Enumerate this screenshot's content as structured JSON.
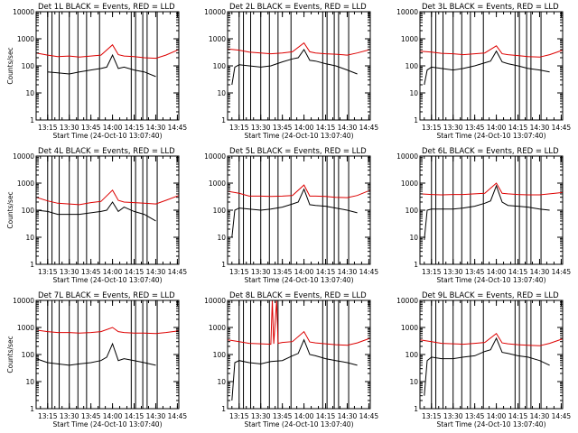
{
  "figure": {
    "background": "#ffffff",
    "events_color": "#000000",
    "lld_color": "#dd0000"
  },
  "chart_data": [
    {
      "type": "line",
      "title": "Det 1L BLACK = Events, RED = LLD",
      "ylabel": "Counts/sec",
      "xlabel": "Start Time (24-Oct-10 13:07:40)",
      "yscale": "log",
      "ylim": [
        1,
        10000
      ],
      "xlim": [
        "13:07",
        "14:46"
      ],
      "x_ticks": [
        "13:15",
        "13:30",
        "13:45",
        "14:00",
        "14:15",
        "14:30",
        "14:45"
      ],
      "y_ticks": [
        "1",
        "10",
        "100",
        "1000",
        "10000"
      ],
      "vlines": [
        "13:15",
        "13:18",
        "13:23",
        "13:30",
        "13:36",
        "13:42",
        "13:51",
        "14:13",
        "14:16",
        "14:21",
        "14:24",
        "14:31"
      ],
      "series": [
        {
          "x": [
            "13:07",
            "13:15",
            "13:22",
            "13:30",
            "13:37",
            "13:45",
            "13:52",
            "14:00",
            "14:04",
            "14:08",
            "14:15",
            "14:22",
            "14:30",
            "14:37",
            "14:46"
          ],
          "y": [
            300,
            250,
            220,
            230,
            210,
            230,
            250,
            600,
            260,
            230,
            220,
            200,
            190,
            250,
            400
          ]
        },
        {
          "x": [
            "13:15",
            "13:22",
            "13:30",
            "13:37",
            "13:45",
            "13:52",
            "13:56",
            "14:00",
            "14:04",
            "14:08",
            "14:15",
            "14:22",
            "14:30"
          ],
          "y": [
            60,
            55,
            50,
            60,
            70,
            80,
            90,
            250,
            80,
            90,
            70,
            60,
            40
          ]
        }
      ]
    },
    {
      "type": "line",
      "title": "Det 2L BLACK = Events, RED = LLD",
      "ylabel": "",
      "xlabel": "Start Time (24-Oct-10 13:07:40)",
      "yscale": "log",
      "ylim": [
        1,
        10000
      ],
      "xlim": [
        "13:07",
        "14:46"
      ],
      "x_ticks": [
        "13:15",
        "13:30",
        "13:45",
        "14:00",
        "14:15",
        "14:30",
        "14:45"
      ],
      "y_ticks": [
        "1",
        "10",
        "100",
        "1000",
        "10000"
      ],
      "vlines": [
        "13:15",
        "13:18",
        "13:23",
        "13:30",
        "13:36",
        "13:42",
        "13:51",
        "14:13",
        "14:16",
        "14:21",
        "14:24",
        "14:31"
      ],
      "series": [
        {
          "x": [
            "13:07",
            "13:15",
            "13:22",
            "13:30",
            "13:37",
            "13:45",
            "13:52",
            "14:00",
            "14:04",
            "14:08",
            "14:15",
            "14:22",
            "14:30",
            "14:37",
            "14:46"
          ],
          "y": [
            420,
            380,
            320,
            300,
            280,
            300,
            330,
            700,
            330,
            300,
            280,
            270,
            250,
            300,
            400
          ]
        },
        {
          "x": [
            "13:10",
            "13:12",
            "13:15",
            "13:22",
            "13:30",
            "13:37",
            "13:45",
            "13:52",
            "13:56",
            "14:00",
            "14:04",
            "14:08",
            "14:15",
            "14:22",
            "14:30",
            "14:37"
          ],
          "y": [
            20,
            90,
            110,
            100,
            90,
            100,
            140,
            180,
            200,
            400,
            160,
            150,
            120,
            100,
            70,
            50
          ]
        }
      ]
    },
    {
      "type": "line",
      "title": "Det 3L BLACK = Events, RED = LLD",
      "ylabel": "",
      "xlabel": "Start Time (24-Oct-10 13:07:40)",
      "yscale": "log",
      "ylim": [
        1,
        10000
      ],
      "xlim": [
        "13:07",
        "14:46"
      ],
      "x_ticks": [
        "13:15",
        "13:30",
        "13:45",
        "14:00",
        "14:15",
        "14:30",
        "14:45"
      ],
      "y_ticks": [
        "1",
        "10",
        "100",
        "1000",
        "10000"
      ],
      "vlines": [
        "13:15",
        "13:18",
        "13:23",
        "13:30",
        "13:36",
        "13:42",
        "13:51",
        "14:13",
        "14:16",
        "14:21",
        "14:24",
        "14:31"
      ],
      "series": [
        {
          "x": [
            "13:07",
            "13:15",
            "13:22",
            "13:30",
            "13:37",
            "13:45",
            "13:52",
            "14:00",
            "14:04",
            "14:08",
            "14:15",
            "14:22",
            "14:30",
            "14:37",
            "14:46"
          ],
          "y": [
            350,
            320,
            290,
            280,
            260,
            280,
            300,
            550,
            280,
            260,
            240,
            220,
            210,
            260,
            380
          ]
        },
        {
          "x": [
            "13:10",
            "13:12",
            "13:15",
            "13:22",
            "13:30",
            "13:37",
            "13:45",
            "13:52",
            "13:56",
            "14:00",
            "14:04",
            "14:08",
            "14:15",
            "14:22",
            "14:30",
            "14:37"
          ],
          "y": [
            20,
            70,
            90,
            80,
            70,
            80,
            100,
            130,
            150,
            350,
            140,
            120,
            100,
            80,
            70,
            60
          ]
        }
      ]
    },
    {
      "type": "line",
      "title": "Det 4L BLACK = Events, RED = LLD",
      "ylabel": "Counts/sec",
      "xlabel": "Start Time (24-Oct-10 13:07:40)",
      "yscale": "log",
      "ylim": [
        1,
        10000
      ],
      "xlim": [
        "13:07",
        "14:46"
      ],
      "x_ticks": [
        "13:15",
        "13:30",
        "13:45",
        "14:00",
        "14:15",
        "14:30",
        "14:45"
      ],
      "y_ticks": [
        "1",
        "10",
        "100",
        "1000",
        "10000"
      ],
      "vlines": [
        "13:15",
        "13:18",
        "13:23",
        "13:30",
        "13:36",
        "13:42",
        "13:51",
        "14:13",
        "14:16",
        "14:21",
        "14:24",
        "14:31"
      ],
      "series": [
        {
          "x": [
            "13:07",
            "13:15",
            "13:22",
            "13:30",
            "13:37",
            "13:45",
            "13:52",
            "14:00",
            "14:04",
            "14:08",
            "14:15",
            "14:22",
            "14:30",
            "14:37",
            "14:46"
          ],
          "y": [
            300,
            220,
            180,
            170,
            160,
            190,
            210,
            550,
            230,
            200,
            190,
            180,
            170,
            230,
            350
          ]
        },
        {
          "x": [
            "13:07",
            "13:15",
            "13:22",
            "13:30",
            "13:37",
            "13:45",
            "13:52",
            "13:56",
            "14:00",
            "14:04",
            "14:08",
            "14:15",
            "14:22",
            "14:30"
          ],
          "y": [
            100,
            90,
            70,
            70,
            70,
            80,
            90,
            100,
            200,
            90,
            130,
            90,
            70,
            40
          ]
        }
      ]
    },
    {
      "type": "line",
      "title": "Det 5L BLACK = Events, RED = LLD",
      "ylabel": "",
      "xlabel": "Start Time (24-Oct-10 13:07:40)",
      "yscale": "log",
      "ylim": [
        1,
        10000
      ],
      "xlim": [
        "13:07",
        "14:46"
      ],
      "x_ticks": [
        "13:15",
        "13:30",
        "13:45",
        "14:00",
        "14:15",
        "14:30",
        "14:45"
      ],
      "y_ticks": [
        "1",
        "10",
        "100",
        "1000",
        "10000"
      ],
      "vlines": [
        "13:15",
        "13:18",
        "13:23",
        "13:30",
        "13:36",
        "13:42",
        "13:51",
        "14:13",
        "14:16",
        "14:21",
        "14:24",
        "14:31"
      ],
      "series": [
        {
          "x": [
            "13:07",
            "13:15",
            "13:22",
            "13:30",
            "13:37",
            "13:45",
            "13:52",
            "14:00",
            "14:04",
            "14:08",
            "14:15",
            "14:22",
            "14:30",
            "14:37",
            "14:46"
          ],
          "y": [
            500,
            420,
            330,
            330,
            320,
            330,
            350,
            850,
            330,
            330,
            320,
            300,
            290,
            350,
            550
          ]
        },
        {
          "x": [
            "13:10",
            "13:12",
            "13:15",
            "13:22",
            "13:30",
            "13:37",
            "13:45",
            "13:52",
            "13:56",
            "14:00",
            "14:04",
            "14:08",
            "14:15",
            "14:22",
            "14:30",
            "14:37"
          ],
          "y": [
            10,
            100,
            120,
            110,
            100,
            110,
            130,
            170,
            200,
            600,
            160,
            150,
            140,
            120,
            100,
            80
          ]
        }
      ]
    },
    {
      "type": "line",
      "title": "Det 6L BLACK = Events, RED = LLD",
      "ylabel": "",
      "xlabel": "Start Time (24-Oct-10 13:07:40)",
      "yscale": "log",
      "ylim": [
        1,
        10000
      ],
      "xlim": [
        "13:07",
        "14:46"
      ],
      "x_ticks": [
        "13:15",
        "13:30",
        "13:45",
        "14:00",
        "14:15",
        "14:30",
        "14:45"
      ],
      "y_ticks": [
        "1",
        "10",
        "100",
        "1000",
        "10000"
      ],
      "vlines": [
        "13:15",
        "13:18",
        "13:23",
        "13:30",
        "13:36",
        "13:42",
        "13:51",
        "14:13",
        "14:16",
        "14:21",
        "14:24",
        "14:31"
      ],
      "series": [
        {
          "x": [
            "13:07",
            "13:15",
            "13:22",
            "13:30",
            "13:37",
            "13:45",
            "13:52",
            "14:00",
            "14:04",
            "14:08",
            "14:15",
            "14:22",
            "14:30",
            "14:37",
            "14:46"
          ],
          "y": [
            400,
            380,
            370,
            380,
            380,
            400,
            420,
            1000,
            420,
            400,
            380,
            370,
            370,
            400,
            450
          ]
        },
        {
          "x": [
            "13:10",
            "13:12",
            "13:15",
            "13:22",
            "13:30",
            "13:37",
            "13:45",
            "13:52",
            "13:56",
            "14:00",
            "14:04",
            "14:08",
            "14:15",
            "14:22",
            "14:30",
            "14:37"
          ],
          "y": [
            8,
            100,
            110,
            110,
            110,
            120,
            140,
            180,
            220,
            800,
            200,
            150,
            140,
            130,
            110,
            100
          ]
        }
      ]
    },
    {
      "type": "line",
      "title": "Det 7L BLACK = Events, RED = LLD",
      "ylabel": "Counts/sec",
      "xlabel": "Start Time (24-Oct-10 13:07:40)",
      "yscale": "log",
      "ylim": [
        1,
        10000
      ],
      "xlim": [
        "13:07",
        "14:46"
      ],
      "x_ticks": [
        "13:15",
        "13:30",
        "13:45",
        "14:00",
        "14:15",
        "14:30",
        "14:45"
      ],
      "y_ticks": [
        "1",
        "10",
        "100",
        "1000",
        "10000"
      ],
      "vlines": [
        "13:15",
        "13:18",
        "13:23",
        "13:30",
        "13:36",
        "13:42",
        "13:51",
        "14:13",
        "14:16",
        "14:21",
        "14:24",
        "14:31"
      ],
      "series": [
        {
          "x": [
            "13:07",
            "13:15",
            "13:22",
            "13:30",
            "13:37",
            "13:45",
            "13:52",
            "14:00",
            "14:04",
            "14:08",
            "14:15",
            "14:22",
            "14:30",
            "14:37",
            "14:46"
          ],
          "y": [
            800,
            700,
            650,
            650,
            620,
            650,
            700,
            1000,
            700,
            650,
            620,
            620,
            600,
            650,
            750
          ]
        },
        {
          "x": [
            "13:07",
            "13:15",
            "13:22",
            "13:30",
            "13:37",
            "13:45",
            "13:52",
            "13:56",
            "14:00",
            "14:04",
            "14:08",
            "14:15",
            "14:22",
            "14:30"
          ],
          "y": [
            70,
            50,
            45,
            40,
            45,
            50,
            60,
            80,
            250,
            60,
            70,
            60,
            50,
            40
          ]
        }
      ]
    },
    {
      "type": "line",
      "title": "Det 8L BLACK = Events, RED = LLD",
      "ylabel": "",
      "xlabel": "Start Time (24-Oct-10 13:07:40)",
      "yscale": "log",
      "ylim": [
        1,
        10000
      ],
      "xlim": [
        "13:07",
        "14:46"
      ],
      "x_ticks": [
        "13:15",
        "13:30",
        "13:45",
        "14:00",
        "14:15",
        "14:30",
        "14:45"
      ],
      "y_ticks": [
        "1",
        "10",
        "100",
        "1000",
        "10000"
      ],
      "vlines": [
        "13:15",
        "13:18",
        "13:23",
        "13:30",
        "13:36",
        "13:42",
        "13:51",
        "14:13",
        "14:16",
        "14:21",
        "14:24",
        "14:31"
      ],
      "series": [
        {
          "x": [
            "13:07",
            "13:15",
            "13:22",
            "13:30",
            "13:37",
            "13:38",
            "13:39",
            "13:41",
            "13:42",
            "13:45",
            "13:52",
            "14:00",
            "14:04",
            "14:08",
            "14:15",
            "14:22",
            "14:30",
            "14:37",
            "14:46"
          ],
          "y": [
            350,
            300,
            260,
            250,
            240,
            10000,
            250,
            10000,
            260,
            280,
            300,
            700,
            290,
            270,
            250,
            230,
            220,
            270,
            400
          ]
        },
        {
          "x": [
            "13:10",
            "13:12",
            "13:15",
            "13:22",
            "13:30",
            "13:37",
            "13:45",
            "13:52",
            "13:56",
            "14:00",
            "14:04",
            "14:08",
            "14:15",
            "14:22",
            "14:30",
            "14:37"
          ],
          "y": [
            2,
            50,
            60,
            50,
            45,
            55,
            60,
            90,
            110,
            350,
            100,
            90,
            70,
            60,
            50,
            40
          ]
        }
      ]
    },
    {
      "type": "line",
      "title": "Det 9L BLACK = Events, RED = LLD",
      "ylabel": "",
      "xlabel": "Start Time (24-Oct-10 13:07:40)",
      "yscale": "log",
      "ylim": [
        1,
        10000
      ],
      "xlim": [
        "13:07",
        "14:46"
      ],
      "x_ticks": [
        "13:15",
        "13:30",
        "13:45",
        "14:00",
        "14:15",
        "14:30",
        "14:45"
      ],
      "y_ticks": [
        "1",
        "10",
        "100",
        "1000",
        "10000"
      ],
      "vlines": [
        "13:15",
        "13:18",
        "13:23",
        "13:30",
        "13:36",
        "13:42",
        "13:51",
        "14:13",
        "14:16",
        "14:21",
        "14:24",
        "14:31"
      ],
      "series": [
        {
          "x": [
            "13:07",
            "13:15",
            "13:22",
            "13:30",
            "13:37",
            "13:45",
            "13:52",
            "14:00",
            "14:04",
            "14:08",
            "14:15",
            "14:22",
            "14:30",
            "14:37",
            "14:46"
          ],
          "y": [
            350,
            300,
            260,
            250,
            240,
            260,
            280,
            600,
            270,
            250,
            230,
            220,
            210,
            260,
            380
          ]
        },
        {
          "x": [
            "13:10",
            "13:12",
            "13:15",
            "13:22",
            "13:30",
            "13:37",
            "13:45",
            "13:52",
            "13:56",
            "14:00",
            "14:04",
            "14:08",
            "14:15",
            "14:22",
            "14:30",
            "14:37"
          ],
          "y": [
            3,
            60,
            80,
            70,
            70,
            80,
            90,
            130,
            150,
            400,
            120,
            110,
            90,
            80,
            60,
            40
          ]
        }
      ]
    }
  ]
}
